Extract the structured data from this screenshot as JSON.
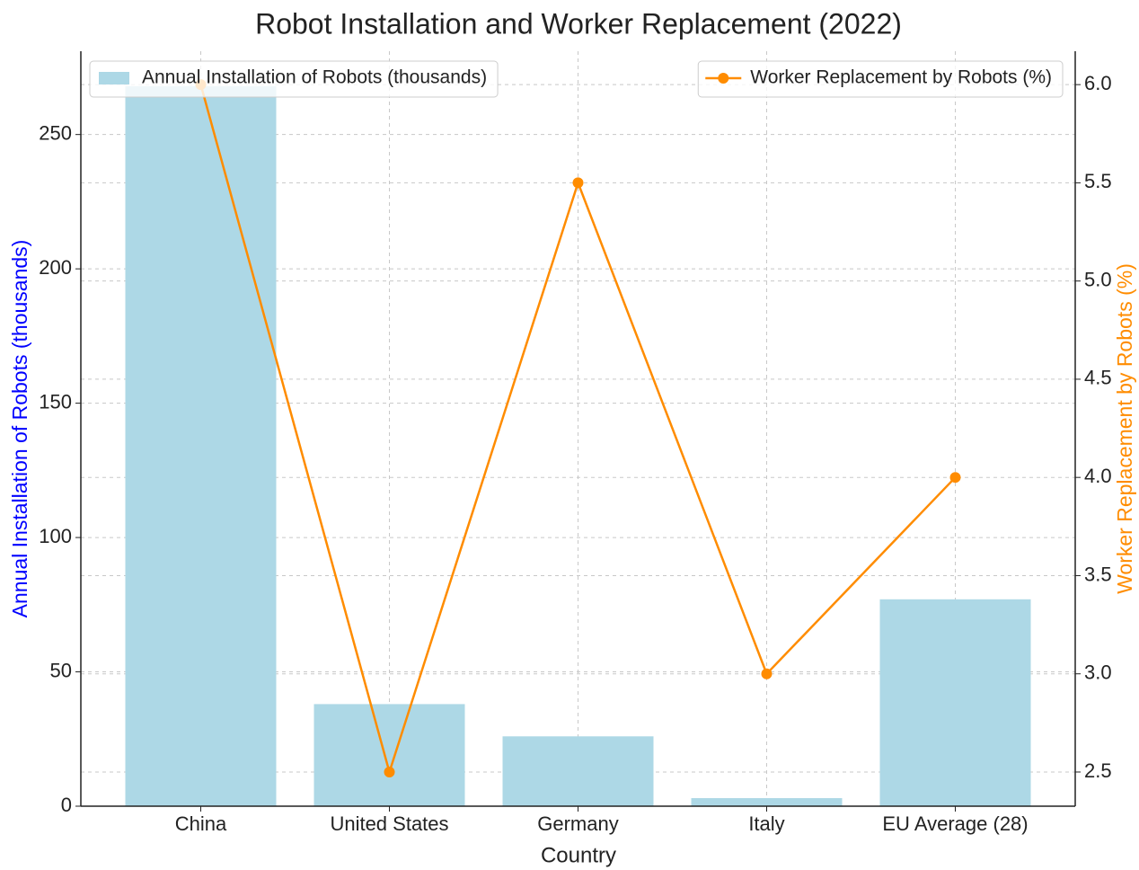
{
  "chart_data": {
    "type": "bar_line",
    "title": "Robot Installation and Worker Replacement (2022)",
    "x_label": "Country",
    "y_label": "Annual Installation of Robots (thousands)",
    "y2_label": "Worker Replacement by Robots (%)",
    "y_label_color": "#0000ff",
    "y2_label_color": "#ff8c00",
    "categories": [
      "China",
      "United States",
      "Germany",
      "Italy",
      "EU Average (28)"
    ],
    "series": [
      {
        "name": "Annual Installation of Robots (thousands)",
        "type": "bar",
        "axis": "y",
        "color": "#add8e6",
        "values": [
          268,
          38,
          26,
          3,
          77
        ]
      },
      {
        "name": "Worker Replacement by Robots (%)",
        "type": "line",
        "axis": "y2",
        "color": "#ff8c00",
        "values": [
          6.0,
          2.5,
          5.5,
          3.0,
          4.0
        ]
      }
    ],
    "ylim": [
      0,
      281
    ],
    "yticks": [
      0,
      50,
      100,
      150,
      200,
      250
    ],
    "y2lim": [
      2.326,
      6.17
    ],
    "y2ticks": [
      2.5,
      {
        "value": 3,
        "label": "3.0"
      },
      3.5,
      {
        "value": 4,
        "label": "4.0"
      },
      4.5,
      {
        "value": 5,
        "label": "5.0"
      },
      5.5,
      {
        "value": 6,
        "label": "6.0"
      }
    ],
    "grid": true,
    "legend": "upper left",
    "legend2": "upper right"
  }
}
